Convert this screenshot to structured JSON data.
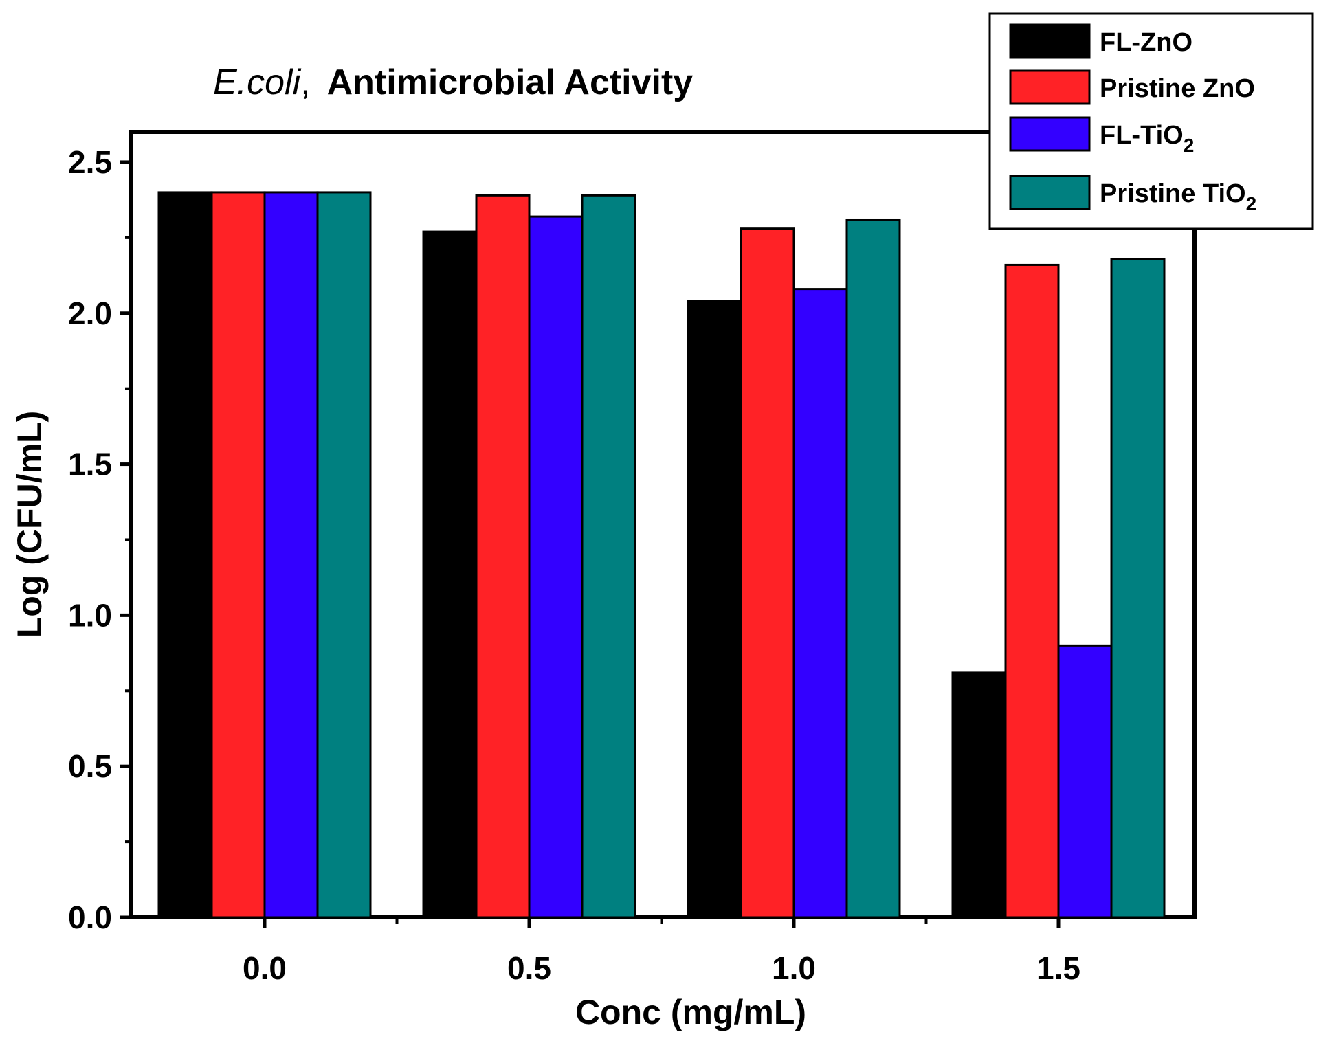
{
  "chart_data": {
    "type": "bar",
    "title_species": "E.coli",
    "title_separator": ",",
    "title_rest": "Antimicrobial Activity",
    "xlabel": "Conc (mg/mL)",
    "ylabel": "Log (CFU/mL)",
    "categories": [
      "0.0",
      "0.5",
      "1.0",
      "1.5"
    ],
    "ylim": [
      0,
      2.6
    ],
    "yticks": [
      "0.0",
      "0.5",
      "1.0",
      "1.5",
      "2.0",
      "2.5"
    ],
    "legend_position": "top-right",
    "series": [
      {
        "name": "FL-ZnO",
        "name_sub": "",
        "color": "#000000",
        "values": [
          2.4,
          2.27,
          2.04,
          0.81
        ]
      },
      {
        "name": "Pristine ZnO",
        "name_sub": "",
        "color": "#ff2226",
        "values": [
          2.4,
          2.39,
          2.28,
          2.16
        ]
      },
      {
        "name": "FL-TiO",
        "name_sub": "2",
        "color": "#3300ff",
        "values": [
          2.4,
          2.32,
          2.08,
          0.9
        ]
      },
      {
        "name": "Pristine TiO",
        "name_sub": "2",
        "color": "#008080",
        "values": [
          2.4,
          2.39,
          2.31,
          2.18
        ]
      }
    ]
  }
}
